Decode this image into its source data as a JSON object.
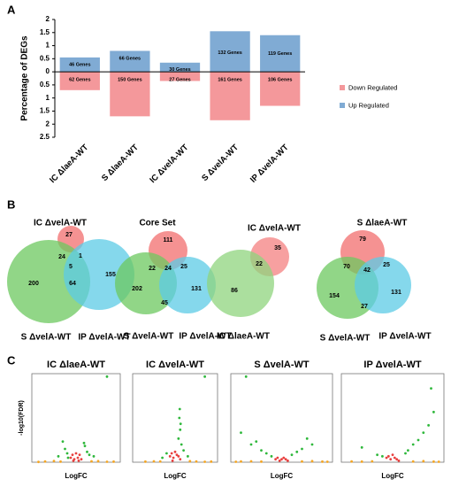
{
  "panel_labels": [
    "A",
    "B",
    "C"
  ],
  "chart_data": [
    {
      "type": "bar",
      "ylabel": "Percentage of DEGs",
      "categories": [
        "IC ΔlaeA-WT",
        "S ΔlaeA-WT",
        "IC ΔvelA-WT",
        "S ΔvelA-WT",
        "IP ΔvelA-WT"
      ],
      "series": [
        {
          "name": "Down Regulated",
          "color": "#f4989b",
          "values": [
            -0.7,
            -1.7,
            -0.35,
            -1.85,
            -1.3
          ],
          "gene_labels": [
            "62 Genes",
            "150 Genes",
            "27 Genes",
            "161 Genes",
            "106 Genes"
          ]
        },
        {
          "name": "Up Regulated",
          "color": "#80abd4",
          "values": [
            0.55,
            0.8,
            0.35,
            1.55,
            1.4
          ],
          "gene_labels": [
            "46 Genes",
            "66 Genes",
            "30 Genes",
            "132 Genes",
            "119 Genes"
          ]
        }
      ],
      "ylim": [
        -2.5,
        2
      ],
      "yticks": [
        2,
        1.5,
        1,
        0.5,
        0,
        {
          "value": -0.5,
          "label": "0.5"
        },
        {
          "value": -1,
          "label": "1"
        },
        {
          "value": -1.5,
          "label": "1.5"
        },
        {
          "value": -2,
          "label": "2"
        },
        {
          "value": -2.5,
          "label": "2.5"
        }
      ],
      "legend": "right"
    },
    {
      "type": "venn",
      "sets": [
        {
          "name": "IC ΔvelA-WT",
          "color": "#f26d6d"
        },
        {
          "name": "S ΔvelA-WT",
          "color": "#6cc85f"
        },
        {
          "name": "IP ΔvelA-WT",
          "color": "#5ccbe6"
        }
      ],
      "counts": [
        27,
        24,
        5,
        1,
        200,
        64,
        155
      ]
    },
    {
      "type": "venn",
      "title": "Core Set",
      "sets": [
        {
          "color": "#f26d6d"
        },
        {
          "name": "S ΔvelA-WT",
          "color": "#6cc85f"
        },
        {
          "name": "IP ΔvelA-WT",
          "color": "#5ccbe6"
        }
      ],
      "counts": [
        111,
        22,
        24,
        25,
        202,
        45,
        131
      ]
    },
    {
      "type": "venn",
      "sets": [
        {
          "name": "IC ΔvelA-WT",
          "color": "#f48080"
        },
        {
          "name": "IC ΔlaeA-WT",
          "color": "#8fd47e"
        }
      ],
      "counts": [
        35,
        22,
        86
      ]
    },
    {
      "type": "venn",
      "sets": [
        {
          "name": "S ΔlaeA-WT",
          "color": "#f26d6d"
        },
        {
          "name": "S ΔvelA-WT",
          "color": "#6cc85f"
        },
        {
          "name": "IP ΔvelA-WT",
          "color": "#5ccbe6"
        }
      ],
      "counts": [
        79,
        70,
        42,
        25,
        154,
        27,
        131
      ]
    },
    {
      "type": "scatter",
      "title": "IC ΔlaeA-WT",
      "xlabel": "LogFC",
      "ylabel": "-log10(FDR)",
      "xlim": [
        -10,
        10
      ],
      "ylim": [
        0,
        60
      ],
      "series": [
        {
          "color": "#f5a623",
          "x": [
            -7,
            -5,
            -3.5,
            3.5,
            5,
            7,
            -8.5,
            8.5
          ],
          "y": [
            0.5,
            0.8,
            0.4,
            0.6,
            0.7,
            0.3,
            0.2,
            0.4
          ]
        },
        {
          "color": "#2fb83c",
          "x": [
            -3,
            -2.5,
            -2,
            -4,
            2,
            2.5,
            3,
            4,
            1.8,
            -1.8,
            7
          ],
          "y": [
            14,
            9,
            6,
            4,
            11,
            7,
            5,
            4,
            13,
            3,
            58
          ]
        },
        {
          "color": "#e8403f",
          "x": [
            -1.2,
            -0.8,
            -0.4,
            0,
            0.4,
            0.8,
            1.2,
            -0.6,
            0.6
          ],
          "y": [
            3,
            5,
            2,
            6,
            3,
            5,
            2,
            1,
            1
          ]
        }
      ]
    },
    {
      "type": "scatter",
      "title": "IC ΔvelA-WT",
      "xlabel": "LogFC",
      "xlim": [
        -10,
        10
      ],
      "ylim": [
        0,
        60
      ],
      "series": [
        {
          "color": "#f5a623",
          "x": [
            -7,
            -5,
            -3.5,
            3.5,
            5,
            7,
            8.5
          ],
          "y": [
            0.4,
            0.6,
            0.5,
            0.7,
            0.5,
            0.3,
            0.4
          ]
        },
        {
          "color": "#2fb83c",
          "x": [
            1,
            1.2,
            0.8,
            1.5,
            1.3,
            -2,
            2,
            3,
            -3,
            1.1,
            7
          ],
          "y": [
            30,
            22,
            16,
            12,
            26,
            6,
            8,
            4,
            3,
            36,
            58
          ]
        },
        {
          "color": "#e8403f",
          "x": [
            -1.2,
            -0.8,
            -0.4,
            0,
            0.4,
            0.8,
            1.2,
            -0.6
          ],
          "y": [
            4,
            6,
            3,
            7,
            5,
            4,
            2,
            1
          ]
        }
      ]
    },
    {
      "type": "scatter",
      "title": "S ΔvelA-WT",
      "xlabel": "LogFC",
      "xlim": [
        -10,
        10
      ],
      "ylim": [
        0,
        60
      ],
      "series": [
        {
          "color": "#f5a623",
          "x": [
            -8,
            -6,
            -4,
            4,
            6,
            8,
            -9,
            9
          ],
          "y": [
            0.5,
            0.6,
            0.4,
            0.5,
            0.7,
            0.4,
            0.3,
            0.3
          ]
        },
        {
          "color": "#2fb83c",
          "x": [
            -8,
            -6,
            -4,
            -3,
            -2,
            2,
            3,
            4,
            6,
            -5,
            5,
            -7
          ],
          "y": [
            20,
            12,
            8,
            6,
            4,
            5,
            7,
            9,
            12,
            14,
            16,
            58
          ]
        },
        {
          "color": "#e8403f",
          "x": [
            -1.2,
            -0.8,
            -0.4,
            0,
            0.4,
            0.8,
            1.2
          ],
          "y": [
            2,
            3,
            1,
            2,
            3,
            2,
            1
          ]
        }
      ]
    },
    {
      "type": "scatter",
      "title": "IP ΔvelA-WT",
      "xlabel": "LogFC",
      "xlim": [
        -10,
        10
      ],
      "ylim": [
        0,
        60
      ],
      "series": [
        {
          "color": "#f5a623",
          "x": [
            -8,
            -6,
            -4,
            4,
            6,
            8,
            9
          ],
          "y": [
            0.5,
            0.4,
            0.6,
            0.5,
            0.7,
            0.4,
            0.3
          ]
        },
        {
          "color": "#2fb83c",
          "x": [
            5,
            6,
            7,
            8,
            -3,
            3,
            4,
            -2,
            -6,
            2.5,
            7.5
          ],
          "y": [
            15,
            20,
            25,
            34,
            5,
            8,
            12,
            4,
            10,
            6,
            50
          ]
        },
        {
          "color": "#e8403f",
          "x": [
            -1.2,
            -0.8,
            -0.4,
            0,
            0.4,
            0.8,
            1.2
          ],
          "y": [
            3,
            4,
            2,
            5,
            3,
            2,
            1
          ]
        }
      ]
    }
  ]
}
